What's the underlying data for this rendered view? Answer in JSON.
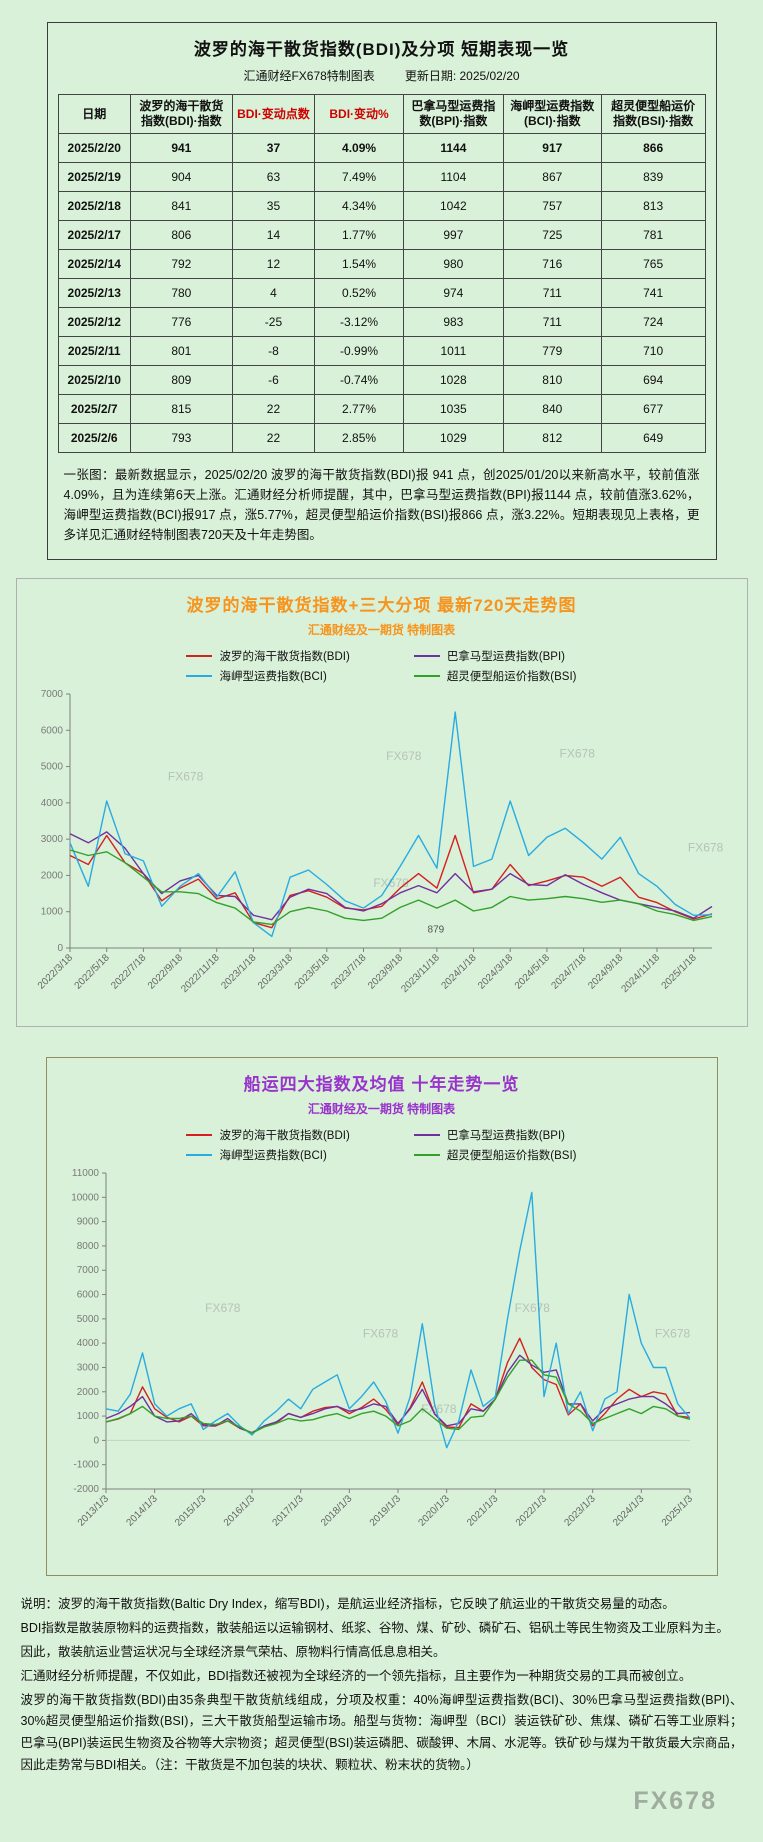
{
  "page": {
    "background": "#d8f1d8"
  },
  "table_section": {
    "title": "波罗的海干散货指数(BDI)及分项 短期表现一览",
    "source_label": "汇通财经FX678特制图表",
    "update_label": "更新日期: 2025/02/20",
    "red_columns": [
      2,
      3
    ],
    "columns": [
      "日期",
      "波罗的海干散货指数(BDI)·指数",
      "BDI·变动点数",
      "BDI·变动%",
      "巴拿马型运费指数(BPI)·指数",
      "海岬型运费指数(BCI)·指数",
      "超灵便型船运价指数(BSI)·指数"
    ],
    "rows": [
      [
        "2025/2/20",
        "941",
        "37",
        "4.09%",
        "1144",
        "917",
        "866"
      ],
      [
        "2025/2/19",
        "904",
        "63",
        "7.49%",
        "1104",
        "867",
        "839"
      ],
      [
        "2025/2/18",
        "841",
        "35",
        "4.34%",
        "1042",
        "757",
        "813"
      ],
      [
        "2025/2/17",
        "806",
        "14",
        "1.77%",
        "997",
        "725",
        "781"
      ],
      [
        "2025/2/14",
        "792",
        "12",
        "1.54%",
        "980",
        "716",
        "765"
      ],
      [
        "2025/2/13",
        "780",
        "4",
        "0.52%",
        "974",
        "711",
        "741"
      ],
      [
        "2025/2/12",
        "776",
        "-25",
        "-3.12%",
        "983",
        "711",
        "724"
      ],
      [
        "2025/2/11",
        "801",
        "-8",
        "-0.99%",
        "1011",
        "779",
        "710"
      ],
      [
        "2025/2/10",
        "809",
        "-6",
        "-0.74%",
        "1028",
        "810",
        "694"
      ],
      [
        "2025/2/7",
        "815",
        "22",
        "2.77%",
        "1035",
        "840",
        "677"
      ],
      [
        "2025/2/6",
        "793",
        "22",
        "2.85%",
        "1029",
        "812",
        "649"
      ]
    ],
    "note": "一张图：最新数据显示，2025/02/20 波罗的海干散货指数(BDI)报 941 点，创2025/01/20以来新高水平，较前值涨 4.09%，且为连续第6天上涨。汇通财经分析师提醒，其中，巴拿马型运费指数(BPI)报1144 点，较前值涨3.62%，海岬型运费指数(BCI)报917 点，涨5.77%，超灵便型船运价指数(BSI)报866 点，涨3.22%。短期表现见上表格，更多详见汇通财经特制图表720天及十年走势图。"
  },
  "chart_data": [
    {
      "type": "line",
      "title": "波罗的海干散货指数+三大分项  最新720天走势图",
      "subtitle": "汇通财经及一期货 特制图表",
      "title_color": "#f7941d",
      "ylim": [
        0,
        7000
      ],
      "ytick_step": 1000,
      "grid": false,
      "legend_position": "top",
      "x_tick_every": 2,
      "x_labels": [
        "2022/3/18",
        "2022/5/18",
        "2022/7/18",
        "2022/9/18",
        "2022/11/18",
        "2023/1/18",
        "2023/3/18",
        "2023/5/18",
        "2023/7/18",
        "2023/9/18",
        "2023/11/18",
        "2024/1/18",
        "2024/3/18",
        "2024/5/18",
        "2024/7/18",
        "2024/9/18",
        "2024/11/18",
        "2025/1/18"
      ],
      "series": [
        {
          "name": "波罗的海干散货指数(BDI)",
          "color": "#d42020",
          "values": [
            2550,
            2300,
            3100,
            2350,
            2050,
            1300,
            1650,
            1900,
            1350,
            1520,
            700,
            560,
            1450,
            1580,
            1400,
            1100,
            1050,
            1150,
            1650,
            2050,
            1650,
            3100,
            1520,
            1620,
            2300,
            1720,
            1850,
            2000,
            1950,
            1700,
            1950,
            1400,
            1250,
            1000,
            800,
            941
          ]
        },
        {
          "name": "巴拿马型运费指数(BPI)",
          "color": "#7030a0",
          "values": [
            3150,
            2900,
            3200,
            2750,
            2050,
            1500,
            1850,
            2000,
            1450,
            1420,
            900,
            780,
            1400,
            1620,
            1500,
            1120,
            1020,
            1220,
            1520,
            1720,
            1520,
            2050,
            1550,
            1620,
            2050,
            1750,
            1720,
            2020,
            1750,
            1520,
            1320,
            1220,
            1120,
            1020,
            820,
            1144
          ]
        },
        {
          "name": "海岬型运费指数(BCI)",
          "color": "#29abe2",
          "values": [
            2900,
            1700,
            4050,
            2600,
            2400,
            1150,
            1700,
            2050,
            1400,
            2100,
            700,
            320,
            1950,
            2150,
            1750,
            1300,
            1100,
            1450,
            2250,
            3100,
            2200,
            6500,
            2250,
            2450,
            4050,
            2550,
            3050,
            3300,
            2900,
            2450,
            3050,
            2050,
            1700,
            1200,
            900,
            917
          ]
        },
        {
          "name": "超灵便型船运价指数(BSI)",
          "color": "#33a02c",
          "values": [
            2700,
            2550,
            2650,
            2350,
            1950,
            1550,
            1550,
            1500,
            1250,
            1100,
            720,
            650,
            1000,
            1120,
            1020,
            820,
            760,
            820,
            1120,
            1320,
            1100,
            1320,
            1020,
            1120,
            1420,
            1320,
            1360,
            1420,
            1360,
            1260,
            1320,
            1220,
            1020,
            920,
            760,
            866
          ]
        }
      ],
      "annotations": [
        {
          "text": "879",
          "x_frac": 0.57,
          "value": 430
        }
      ],
      "watermarks": [
        {
          "x": 0.18,
          "y": 0.34
        },
        {
          "x": 0.52,
          "y": 0.26
        },
        {
          "x": 0.79,
          "y": 0.25
        },
        {
          "x": 0.5,
          "y": 0.76
        },
        {
          "x": 0.99,
          "y": 0.62
        }
      ]
    },
    {
      "type": "line",
      "title": "船运四大指数及均值 十年走势一览",
      "subtitle": "汇通财经及一期货 特制图表",
      "title_color": "#9933cc",
      "ylim": [
        -2000,
        11000
      ],
      "ytick_step": 1000,
      "grid": false,
      "zero_line": true,
      "legend_position": "top",
      "x_tick_every": 4,
      "x_labels": [
        "2013/1/3",
        "2014/1/3",
        "2015/1/3",
        "2016/1/3",
        "2017/1/3",
        "2018/1/3",
        "2019/1/3",
        "2020/1/3",
        "2021/1/3",
        "2022/1/3",
        "2023/1/3",
        "2024/1/3",
        "2025/1/3"
      ],
      "series": [
        {
          "name": "波罗的海干散货指数(BDI)",
          "color": "#d42020",
          "values": [
            760,
            880,
            1100,
            2200,
            1300,
            950,
            760,
            1000,
            600,
            590,
            800,
            500,
            320,
            580,
            720,
            1100,
            940,
            1200,
            1350,
            1400,
            1100,
            1350,
            1700,
            1270,
            650,
            1350,
            2400,
            1090,
            550,
            520,
            1500,
            1200,
            1700,
            3200,
            4200,
            3000,
            2500,
            2300,
            1050,
            1500,
            600,
            1100,
            1700,
            2100,
            1800,
            2000,
            1900,
            1000,
            941
          ]
        },
        {
          "name": "巴拿马型运费指数(BPI)",
          "color": "#7030a0",
          "values": [
            900,
            1100,
            1400,
            1800,
            1000,
            760,
            800,
            1100,
            650,
            600,
            900,
            500,
            310,
            600,
            760,
            1100,
            950,
            1100,
            1300,
            1400,
            1200,
            1300,
            1500,
            1400,
            700,
            1300,
            2100,
            1100,
            600,
            700,
            1300,
            1200,
            1700,
            2800,
            3500,
            3100,
            2800,
            2900,
            1500,
            1500,
            800,
            1300,
            1500,
            1700,
            1800,
            1800,
            1500,
            1100,
            1144
          ]
        },
        {
          "name": "海岬型运费指数(BCI)",
          "color": "#29abe2",
          "values": [
            1300,
            1200,
            1900,
            3600,
            1500,
            1000,
            1300,
            1500,
            450,
            800,
            1100,
            600,
            220,
            800,
            1200,
            1700,
            1300,
            2100,
            2400,
            2700,
            1300,
            1800,
            2400,
            1600,
            300,
            1800,
            4800,
            1500,
            -300,
            800,
            2900,
            1400,
            1800,
            5000,
            7800,
            10200,
            1800,
            4000,
            1100,
            2000,
            400,
            1700,
            2000,
            6000,
            4000,
            3000,
            3000,
            1500,
            917
          ]
        },
        {
          "name": "超灵便型船运价指数(BSI)",
          "color": "#33a02c",
          "values": [
            760,
            900,
            1100,
            1400,
            1000,
            900,
            900,
            1000,
            700,
            650,
            800,
            550,
            300,
            550,
            700,
            900,
            800,
            850,
            1000,
            1100,
            900,
            1100,
            1200,
            1000,
            600,
            800,
            1300,
            900,
            500,
            450,
            950,
            1000,
            1700,
            2600,
            3300,
            3300,
            2700,
            2600,
            1500,
            1200,
            700,
            900,
            1100,
            1300,
            1100,
            1400,
            1300,
            1000,
            866
          ]
        }
      ],
      "annotations": [],
      "watermarks": [
        {
          "x": 0.2,
          "y": 0.44
        },
        {
          "x": 0.47,
          "y": 0.52
        },
        {
          "x": 0.73,
          "y": 0.44
        },
        {
          "x": 0.57,
          "y": 0.76
        },
        {
          "x": 0.97,
          "y": 0.52
        }
      ]
    }
  ],
  "footer": {
    "watermark": "FX678",
    "lines": [
      "说明：波罗的海干散货指数(Baltic Dry Index，缩写BDI)，是航运业经济指标，它反映了航运业的干散货交易量的动态。",
      "BDI指数是散装原物料的运费指数，散装船运以运输钢材、纸浆、谷物、煤、矿砂、磷矿石、铝矾土等民生物资及工业原料为主。",
      "因此，散装航运业营运状况与全球经济景气荣枯、原物料行情高低息息相关。",
      "汇通财经分析师提醒，不仅如此，BDI指数还被视为全球经济的一个领先指标，且主要作为一种期货交易的工具而被创立。",
      "波罗的海干散货指数(BDI)由35条典型干散货航线组成，分项及权重：40%海岬型运费指数(BCI)、30%巴拿马型运费指数(BPI)、30%超灵便型船运价指数(BSI)，三大干散货船型运输市场。船型与货物：海岬型（BCI）装运铁矿砂、焦煤、磷矿石等工业原料；巴拿马(BPI)装运民生物资及谷物等大宗物资；超灵便型(BSI)装运磷肥、碳酸钾、木屑、水泥等。铁矿砂与煤为干散货最大宗商品，因此走势常与BDI相关。（注：干散货是不加包装的块状、颗粒状、粉末状的货物。）"
    ]
  }
}
